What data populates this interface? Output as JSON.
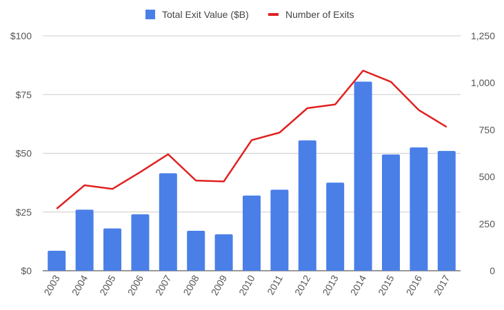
{
  "chart_data": {
    "type": "bar",
    "categories": [
      "2003",
      "2004",
      "2005",
      "2006",
      "2007",
      "2008",
      "2009",
      "2010",
      "2011",
      "2012",
      "2013",
      "2014",
      "2015",
      "2016",
      "2017"
    ],
    "series": [
      {
        "name": "Total Exit Value ($B)",
        "type": "bar",
        "axis": "left",
        "color": "#4a7fe8",
        "values": [
          8.5,
          26,
          18,
          24,
          41.5,
          17,
          15.5,
          32,
          34.5,
          55.5,
          37.5,
          80.5,
          49.5,
          52.5,
          51
        ]
      },
      {
        "name": "Number of Exits",
        "type": "line",
        "axis": "right",
        "color": "#e02020",
        "values": [
          330,
          455,
          435,
          525,
          620,
          480,
          475,
          695,
          735,
          865,
          885,
          1065,
          1005,
          855,
          765
        ]
      }
    ],
    "left_axis": {
      "ylim": [
        0,
        100
      ],
      "ticks": [
        "$0",
        "$25",
        "$50",
        "$75",
        "$100"
      ],
      "values": [
        0,
        25,
        50,
        75,
        100
      ]
    },
    "right_axis": {
      "ylim": [
        0,
        1250
      ],
      "ticks": [
        "0",
        "250",
        "500",
        "750",
        "1,000",
        "1,250"
      ],
      "values": [
        0,
        250,
        500,
        750,
        1000,
        1250
      ]
    },
    "grid": true,
    "legend_position": "top-center"
  }
}
